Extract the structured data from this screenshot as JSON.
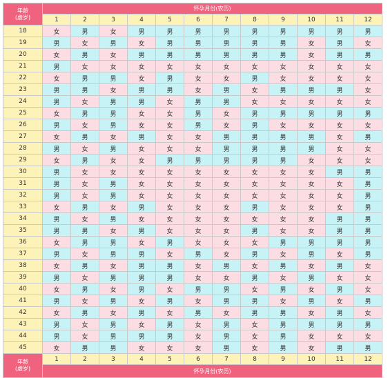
{
  "header": {
    "age_label_line1": "年龄",
    "age_label_line2": "(虚岁)",
    "month_title": "怀孕月份(农历)"
  },
  "footer": {
    "age_label_line1": "年龄",
    "age_label_line2": "(虚岁)",
    "month_title": "怀孕月份(农历)"
  },
  "months": [
    "1",
    "2",
    "3",
    "4",
    "5",
    "6",
    "7",
    "8",
    "9",
    "10",
    "11",
    "12"
  ],
  "legend": {
    "girl": "女",
    "boy": "男"
  },
  "colors": {
    "header_bg": "#f0637f",
    "age_bg": "#fdf3b8",
    "girl_bg": "#fcdde4",
    "boy_bg": "#c7f3f7"
  },
  "rows": [
    {
      "age": "18",
      "cells": [
        "女",
        "男",
        "女",
        "男",
        "男",
        "男",
        "男",
        "男",
        "男",
        "男",
        "男",
        "男"
      ]
    },
    {
      "age": "19",
      "cells": [
        "男",
        "女",
        "男",
        "女",
        "男",
        "男",
        "男",
        "男",
        "男",
        "女",
        "男",
        "女"
      ]
    },
    {
      "age": "20",
      "cells": [
        "女",
        "男",
        "女",
        "男",
        "男",
        "男",
        "男",
        "男",
        "男",
        "女",
        "男",
        "男"
      ]
    },
    {
      "age": "21",
      "cells": [
        "男",
        "女",
        "女",
        "女",
        "女",
        "女",
        "女",
        "女",
        "女",
        "女",
        "女",
        "女"
      ]
    },
    {
      "age": "22",
      "cells": [
        "女",
        "男",
        "男",
        "女",
        "男",
        "女",
        "女",
        "男",
        "女",
        "女",
        "女",
        "女"
      ]
    },
    {
      "age": "23",
      "cells": [
        "男",
        "男",
        "女",
        "男",
        "男",
        "女",
        "男",
        "女",
        "男",
        "男",
        "男",
        "女"
      ]
    },
    {
      "age": "24",
      "cells": [
        "男",
        "女",
        "男",
        "男",
        "女",
        "男",
        "男",
        "女",
        "女",
        "女",
        "女",
        "女"
      ]
    },
    {
      "age": "25",
      "cells": [
        "女",
        "男",
        "男",
        "女",
        "女",
        "男",
        "女",
        "男",
        "男",
        "男",
        "男",
        "男"
      ]
    },
    {
      "age": "26",
      "cells": [
        "男",
        "女",
        "男",
        "女",
        "女",
        "男",
        "女",
        "男",
        "女",
        "女",
        "女",
        "女"
      ]
    },
    {
      "age": "27",
      "cells": [
        "女",
        "男",
        "女",
        "男",
        "女",
        "女",
        "男",
        "男",
        "男",
        "男",
        "女",
        "男"
      ]
    },
    {
      "age": "28",
      "cells": [
        "男",
        "女",
        "男",
        "女",
        "女",
        "女",
        "男",
        "男",
        "男",
        "男",
        "女",
        "女"
      ]
    },
    {
      "age": "29",
      "cells": [
        "女",
        "男",
        "女",
        "女",
        "男",
        "男",
        "男",
        "男",
        "男",
        "女",
        "女",
        "女"
      ]
    },
    {
      "age": "30",
      "cells": [
        "男",
        "女",
        "女",
        "女",
        "女",
        "女",
        "女",
        "女",
        "女",
        "女",
        "男",
        "男"
      ]
    },
    {
      "age": "31",
      "cells": [
        "男",
        "女",
        "男",
        "女",
        "女",
        "女",
        "女",
        "女",
        "女",
        "女",
        "女",
        "男"
      ]
    },
    {
      "age": "32",
      "cells": [
        "男",
        "女",
        "男",
        "女",
        "女",
        "女",
        "女",
        "女",
        "女",
        "女",
        "女",
        "男"
      ]
    },
    {
      "age": "33",
      "cells": [
        "女",
        "男",
        "女",
        "男",
        "女",
        "女",
        "女",
        "男",
        "女",
        "女",
        "女",
        "男"
      ]
    },
    {
      "age": "34",
      "cells": [
        "男",
        "女",
        "男",
        "女",
        "女",
        "女",
        "女",
        "女",
        "女",
        "女",
        "男",
        "男"
      ]
    },
    {
      "age": "35",
      "cells": [
        "男",
        "男",
        "女",
        "男",
        "女",
        "女",
        "女",
        "男",
        "女",
        "女",
        "男",
        "男"
      ]
    },
    {
      "age": "36",
      "cells": [
        "女",
        "男",
        "男",
        "女",
        "男",
        "女",
        "女",
        "女",
        "男",
        "男",
        "男",
        "男"
      ]
    },
    {
      "age": "37",
      "cells": [
        "男",
        "女",
        "男",
        "男",
        "女",
        "男",
        "女",
        "男",
        "女",
        "男",
        "女",
        "男"
      ]
    },
    {
      "age": "38",
      "cells": [
        "女",
        "男",
        "女",
        "男",
        "男",
        "女",
        "男",
        "女",
        "男",
        "女",
        "男",
        "女"
      ]
    },
    {
      "age": "39",
      "cells": [
        "男",
        "女",
        "男",
        "男",
        "男",
        "女",
        "女",
        "男",
        "女",
        "男",
        "女",
        "女"
      ]
    },
    {
      "age": "40",
      "cells": [
        "女",
        "男",
        "女",
        "男",
        "女",
        "男",
        "男",
        "女",
        "男",
        "女",
        "男",
        "女"
      ]
    },
    {
      "age": "41",
      "cells": [
        "男",
        "女",
        "男",
        "女",
        "男",
        "女",
        "男",
        "男",
        "女",
        "男",
        "女",
        "男"
      ]
    },
    {
      "age": "42",
      "cells": [
        "女",
        "男",
        "女",
        "男",
        "女",
        "男",
        "女",
        "男",
        "男",
        "女",
        "男",
        "女"
      ]
    },
    {
      "age": "43",
      "cells": [
        "男",
        "女",
        "男",
        "女",
        "男",
        "女",
        "男",
        "女",
        "男",
        "男",
        "男",
        "男"
      ]
    },
    {
      "age": "44",
      "cells": [
        "男",
        "女",
        "男",
        "男",
        "男",
        "女",
        "男",
        "女",
        "男",
        "女",
        "女",
        "女"
      ]
    },
    {
      "age": "45",
      "cells": [
        "女",
        "男",
        "男",
        "女",
        "女",
        "女",
        "男",
        "女",
        "男",
        "女",
        "男",
        "男"
      ]
    }
  ]
}
